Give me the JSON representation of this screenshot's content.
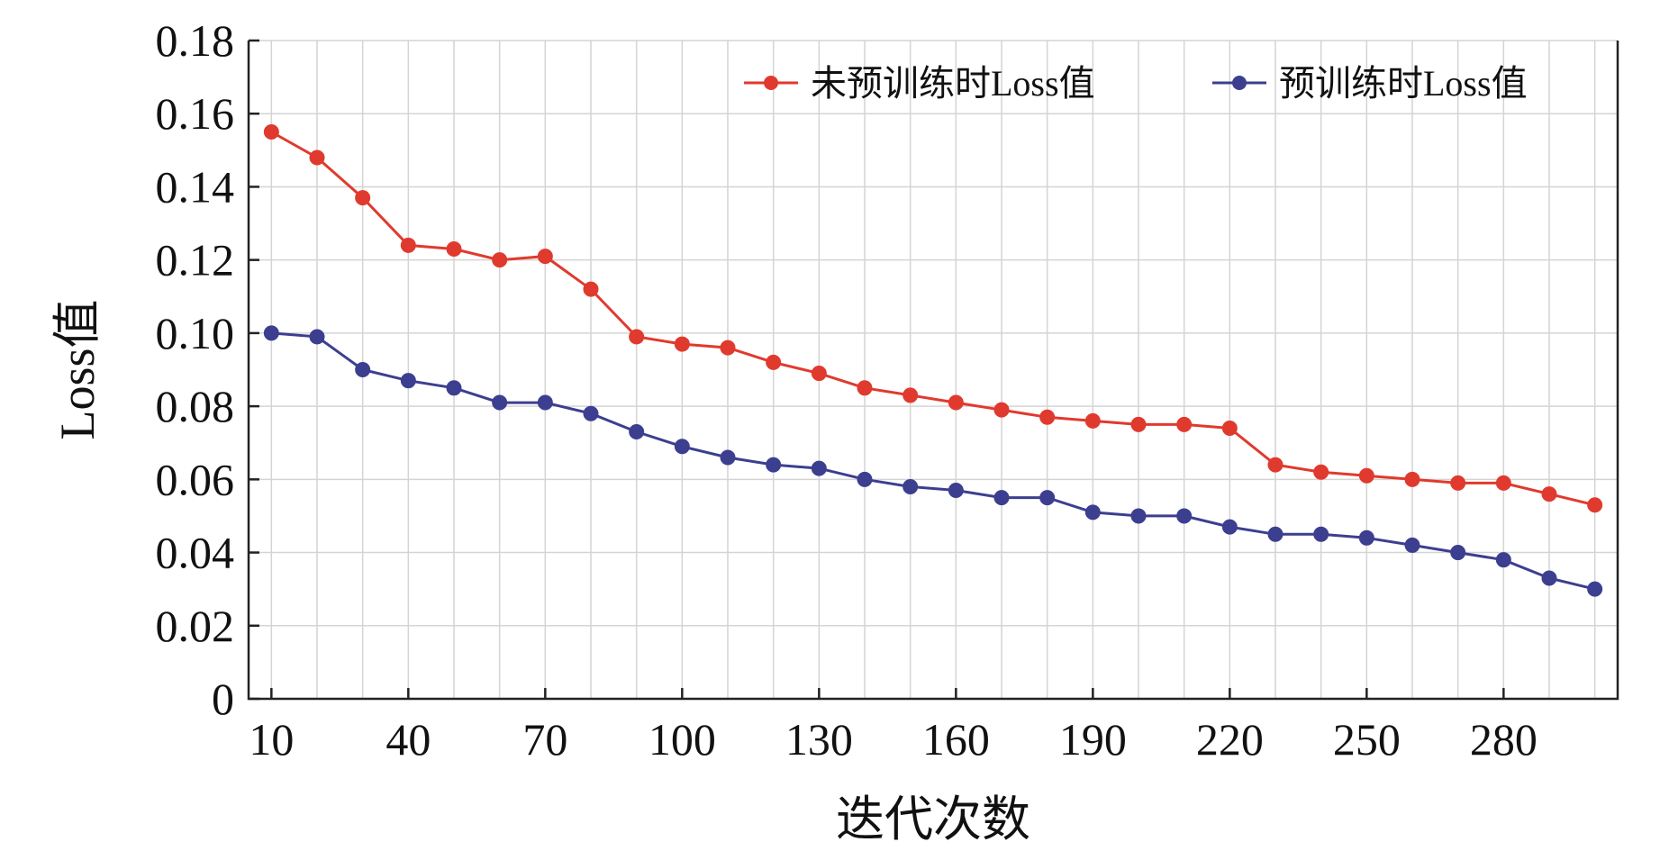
{
  "chart_data": {
    "type": "line",
    "xlabel": "迭代次数",
    "ylabel": "Loss值",
    "xlim": [
      5,
      305
    ],
    "ylim": [
      0,
      0.18
    ],
    "x_ticks": [
      10,
      40,
      70,
      100,
      130,
      160,
      190,
      220,
      250,
      280
    ],
    "x_tick_labels": [
      "10",
      "40",
      "70",
      "100",
      "130",
      "160",
      "190",
      "220",
      "250",
      "280"
    ],
    "y_ticks": [
      0,
      0.02,
      0.04,
      0.06,
      0.08,
      0.1,
      0.12,
      0.14,
      0.16,
      0.18
    ],
    "y_tick_labels": [
      "0",
      "0.02",
      "0.04",
      "0.06",
      "0.08",
      "0.10",
      "0.12",
      "0.14",
      "0.16",
      "0.18"
    ],
    "grid": true,
    "legend": "top-right",
    "x": [
      10,
      20,
      30,
      40,
      50,
      60,
      70,
      80,
      90,
      100,
      110,
      120,
      130,
      140,
      150,
      160,
      170,
      180,
      190,
      200,
      210,
      220,
      230,
      240,
      250,
      260,
      270,
      280,
      290,
      300
    ],
    "series": [
      {
        "name": "未预训练时Loss值",
        "color": "#e03a2e",
        "values": [
          0.155,
          0.148,
          0.137,
          0.124,
          0.123,
          0.12,
          0.121,
          0.112,
          0.099,
          0.097,
          0.096,
          0.092,
          0.089,
          0.085,
          0.083,
          0.081,
          0.079,
          0.077,
          0.076,
          0.075,
          0.075,
          0.074,
          0.064,
          0.062,
          0.061,
          0.06,
          0.059,
          0.059,
          0.056,
          0.053
        ]
      },
      {
        "name": "预训练时Loss值",
        "color": "#3c3f8f",
        "values": [
          0.1,
          0.099,
          0.09,
          0.087,
          0.085,
          0.081,
          0.081,
          0.078,
          0.073,
          0.069,
          0.066,
          0.064,
          0.063,
          0.06,
          0.058,
          0.057,
          0.055,
          0.055,
          0.051,
          0.05,
          0.05,
          0.047,
          0.045,
          0.045,
          0.044,
          0.042,
          0.04,
          0.038,
          0.033,
          0.03
        ]
      }
    ]
  }
}
